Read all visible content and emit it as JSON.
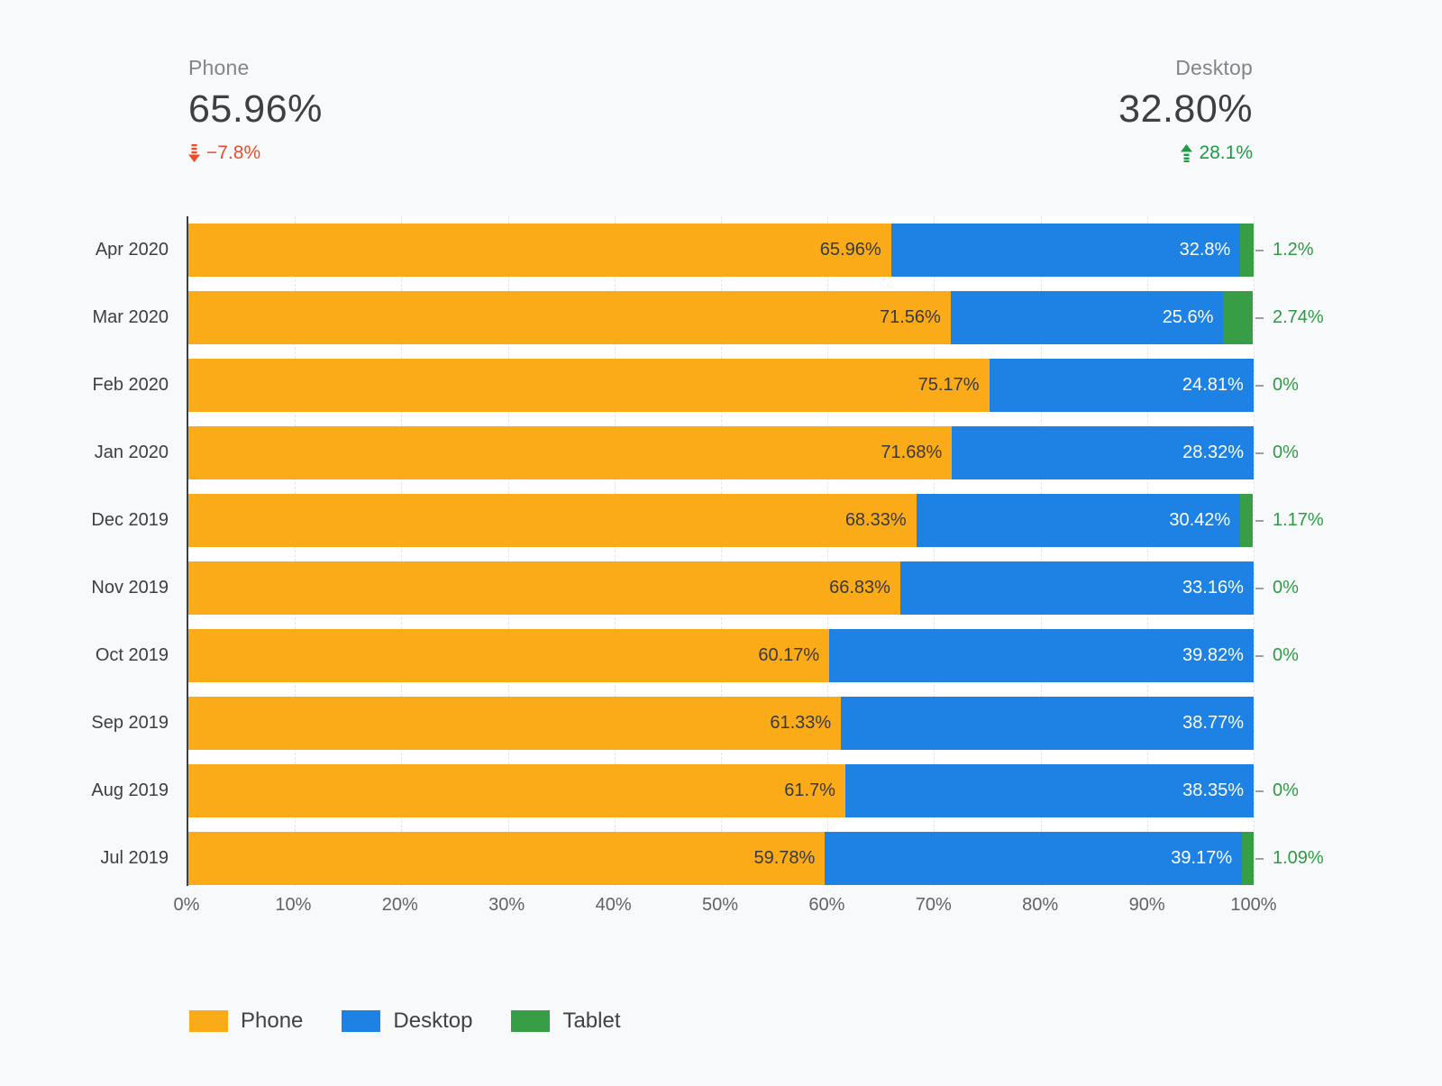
{
  "kpis": {
    "phone": {
      "title": "Phone",
      "value": "65.96%",
      "delta": "−7.8%",
      "direction": "down"
    },
    "desktop": {
      "title": "Desktop",
      "value": "32.80%",
      "delta": "28.1%",
      "direction": "up"
    }
  },
  "colors": {
    "phone": "#FBAB17",
    "desktop": "#1E82E5",
    "tablet": "#389E46",
    "tablet_label": "#2E9B44",
    "delta_down": "#E94E2F",
    "delta_up": "#1D9C45"
  },
  "chart_data": {
    "type": "bar",
    "orientation": "horizontal",
    "stacked": true,
    "title": "",
    "xlabel": "",
    "ylabel": "",
    "xlim": [
      0,
      100
    ],
    "grid": "vertical-dashed",
    "legend_position": "bottom",
    "x_ticks": [
      "0%",
      "10%",
      "20%",
      "30%",
      "40%",
      "50%",
      "60%",
      "70%",
      "80%",
      "90%",
      "100%"
    ],
    "categories": [
      "Apr 2020",
      "Mar 2020",
      "Feb 2020",
      "Jan 2020",
      "Dec 2019",
      "Nov 2019",
      "Oct 2019",
      "Sep 2019",
      "Aug 2019",
      "Jul 2019"
    ],
    "series": [
      {
        "name": "Phone",
        "values": [
          65.96,
          71.56,
          75.17,
          71.68,
          68.33,
          66.83,
          60.17,
          61.33,
          61.7,
          59.78
        ]
      },
      {
        "name": "Desktop",
        "values": [
          32.8,
          25.6,
          24.81,
          28.32,
          30.42,
          33.16,
          39.82,
          38.77,
          38.35,
          39.17
        ]
      },
      {
        "name": "Tablet",
        "values": [
          1.2,
          2.74,
          0,
          0,
          1.17,
          0,
          0,
          null,
          0,
          1.09
        ]
      }
    ],
    "rows": [
      {
        "month": "Apr 2020",
        "phone": 65.96,
        "desktop": 32.8,
        "tablet": 1.2,
        "phone_label": "65.96%",
        "desktop_label": "32.8%",
        "tablet_label": "1.2%"
      },
      {
        "month": "Mar 2020",
        "phone": 71.56,
        "desktop": 25.6,
        "tablet": 2.74,
        "phone_label": "71.56%",
        "desktop_label": "25.6%",
        "tablet_label": "2.74%"
      },
      {
        "month": "Feb 2020",
        "phone": 75.17,
        "desktop": 24.81,
        "tablet": 0,
        "phone_label": "75.17%",
        "desktop_label": "24.81%",
        "tablet_label": "0%"
      },
      {
        "month": "Jan 2020",
        "phone": 71.68,
        "desktop": 28.32,
        "tablet": 0,
        "phone_label": "71.68%",
        "desktop_label": "28.32%",
        "tablet_label": "0%"
      },
      {
        "month": "Dec 2019",
        "phone": 68.33,
        "desktop": 30.42,
        "tablet": 1.17,
        "phone_label": "68.33%",
        "desktop_label": "30.42%",
        "tablet_label": "1.17%"
      },
      {
        "month": "Nov 2019",
        "phone": 66.83,
        "desktop": 33.16,
        "tablet": 0,
        "phone_label": "66.83%",
        "desktop_label": "33.16%",
        "tablet_label": "0%"
      },
      {
        "month": "Oct 2019",
        "phone": 60.17,
        "desktop": 39.82,
        "tablet": 0,
        "phone_label": "60.17%",
        "desktop_label": "39.82%",
        "tablet_label": "0%"
      },
      {
        "month": "Sep 2019",
        "phone": 61.33,
        "desktop": 38.77,
        "tablet": 0,
        "phone_label": "61.33%",
        "desktop_label": "38.77%",
        "tablet_label": ""
      },
      {
        "month": "Aug 2019",
        "phone": 61.7,
        "desktop": 38.35,
        "tablet": 0,
        "phone_label": "61.7%",
        "desktop_label": "38.35%",
        "tablet_label": "0%"
      },
      {
        "month": "Jul 2019",
        "phone": 59.78,
        "desktop": 39.17,
        "tablet": 1.09,
        "phone_label": "59.78%",
        "desktop_label": "39.17%",
        "tablet_label": "1.09%"
      }
    ]
  },
  "legend": {
    "items": [
      {
        "label": "Phone"
      },
      {
        "label": "Desktop"
      },
      {
        "label": "Tablet"
      }
    ]
  }
}
